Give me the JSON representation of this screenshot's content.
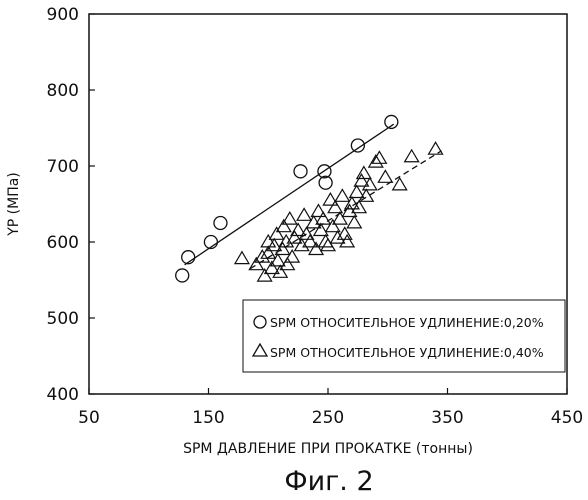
{
  "chart_data": {
    "type": "scatter",
    "xlabel": "SPM ДАВЛЕНИЕ ПРИ ПРОКАТКЕ (тонны)",
    "ylabel": "YP (МПа)",
    "xlim": [
      50,
      450
    ],
    "ylim": [
      400,
      900
    ],
    "xticks": [
      50,
      150,
      250,
      350,
      450
    ],
    "yticks": [
      400,
      500,
      600,
      700,
      800,
      900
    ],
    "legend_position": "bottom-right",
    "series": [
      {
        "name": "SPM ОТНОСИТЕЛЬНОЕ УДЛИНЕНИЕ:0,20%",
        "marker": "circle",
        "fit_line": "solid",
        "fit": [
          [
            130,
            570
          ],
          [
            305,
            755
          ]
        ],
        "points": [
          [
            128,
            556
          ],
          [
            133,
            580
          ],
          [
            152,
            600
          ],
          [
            160,
            625
          ],
          [
            227,
            693
          ],
          [
            247,
            693
          ],
          [
            248,
            678
          ],
          [
            275,
            727
          ],
          [
            303,
            758
          ]
        ]
      },
      {
        "name": "SPM ОТНОСИТЕЛЬНОЕ УДЛИНЕНИЕ:0,40%",
        "marker": "triangle",
        "fit_line": "dashed",
        "fit": [
          [
            185,
            565
          ],
          [
            345,
            720
          ]
        ],
        "points": [
          [
            178,
            578
          ],
          [
            190,
            570
          ],
          [
            195,
            580
          ],
          [
            197,
            555
          ],
          [
            200,
            585
          ],
          [
            200,
            600
          ],
          [
            203,
            565
          ],
          [
            205,
            595
          ],
          [
            207,
            610
          ],
          [
            208,
            575
          ],
          [
            210,
            560
          ],
          [
            212,
            590
          ],
          [
            213,
            620
          ],
          [
            215,
            600
          ],
          [
            216,
            570
          ],
          [
            218,
            630
          ],
          [
            220,
            580
          ],
          [
            222,
            605
          ],
          [
            225,
            615
          ],
          [
            228,
            595
          ],
          [
            230,
            635
          ],
          [
            232,
            610
          ],
          [
            235,
            600
          ],
          [
            238,
            625
          ],
          [
            240,
            590
          ],
          [
            242,
            640
          ],
          [
            244,
            615
          ],
          [
            246,
            630
          ],
          [
            248,
            600
          ],
          [
            250,
            595
          ],
          [
            252,
            655
          ],
          [
            254,
            620
          ],
          [
            256,
            645
          ],
          [
            258,
            605
          ],
          [
            260,
            630
          ],
          [
            262,
            660
          ],
          [
            264,
            610
          ],
          [
            266,
            600
          ],
          [
            268,
            640
          ],
          [
            270,
            650
          ],
          [
            272,
            625
          ],
          [
            274,
            665
          ],
          [
            276,
            645
          ],
          [
            278,
            680
          ],
          [
            280,
            690
          ],
          [
            282,
            660
          ],
          [
            285,
            675
          ],
          [
            290,
            705
          ],
          [
            293,
            710
          ],
          [
            298,
            685
          ],
          [
            310,
            675
          ],
          [
            320,
            712
          ],
          [
            340,
            722
          ]
        ]
      }
    ]
  },
  "caption": "Фиг. 2"
}
